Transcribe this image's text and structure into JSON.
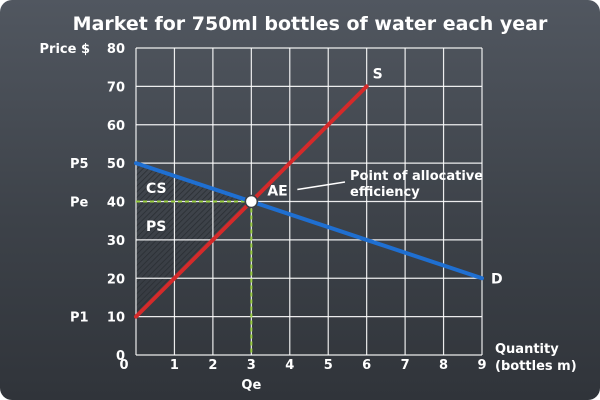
{
  "chart_data": {
    "type": "line",
    "title": "Market for 750ml bottles of water each year",
    "ylabel": "Price $",
    "xlabel": [
      "Quantity",
      "(bottles m)"
    ],
    "xlim": [
      0,
      9
    ],
    "ylim": [
      0,
      80
    ],
    "x_ticks": [
      0,
      1,
      2,
      3,
      4,
      5,
      6,
      7,
      8,
      9
    ],
    "y_ticks": [
      0,
      10,
      20,
      30,
      40,
      50,
      60,
      70,
      80
    ],
    "grid": true,
    "series": [
      {
        "name": "S",
        "color": "#d42a2a",
        "x": [
          0,
          6
        ],
        "y": [
          10,
          70
        ]
      },
      {
        "name": "D",
        "color": "#1f6fd1",
        "x": [
          0,
          9
        ],
        "y": [
          50,
          20
        ]
      }
    ],
    "equilibrium": {
      "x": 3,
      "y": 40,
      "label": "AE"
    },
    "price_labels": [
      {
        "text": "P5",
        "y": 50
      },
      {
        "text": "Pe",
        "y": 40
      },
      {
        "text": "P1",
        "y": 10
      }
    ],
    "quantity_label": {
      "text": "Qe",
      "x": 3
    },
    "areas": [
      {
        "name": "CS",
        "label": "CS"
      },
      {
        "name": "PS",
        "label": "PS"
      }
    ],
    "annotation": {
      "lines": [
        "Point of allocative",
        "efficiency"
      ]
    },
    "colors": {
      "supply": "#d42a2a",
      "demand": "#1f6fd1",
      "guide": "#9bd042",
      "background": "#3d4249",
      "grid": "#ffffff"
    }
  }
}
